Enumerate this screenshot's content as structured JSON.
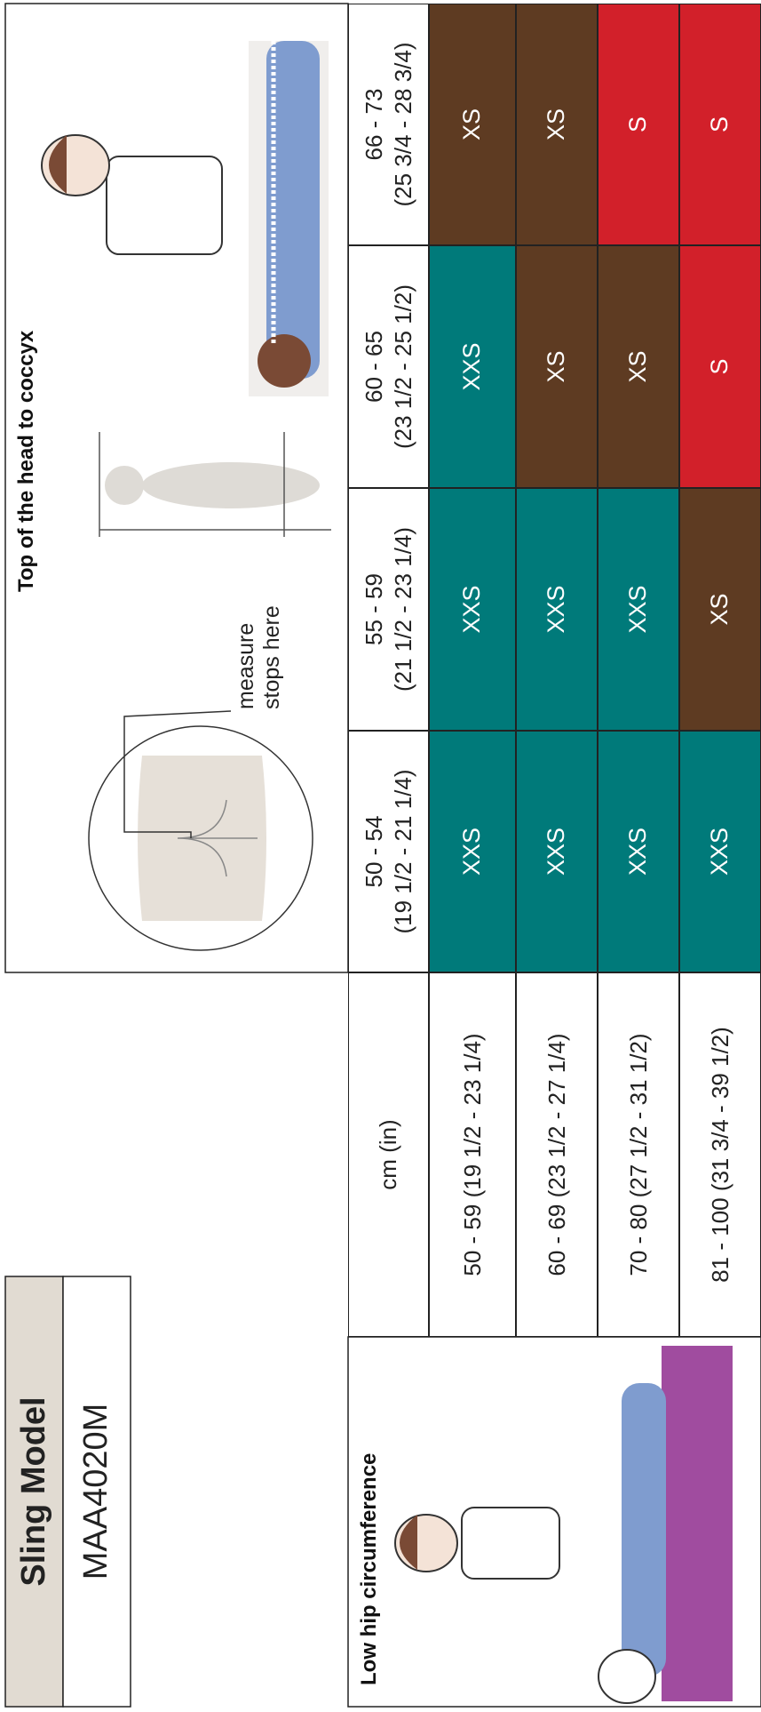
{
  "header": {
    "title": "Sling Model",
    "model": "MAA4020M"
  },
  "hip": {
    "title": "Low hip circumference",
    "unit": "cm (in)",
    "rows": [
      "50 - 59 (19 1/2 - 23 1/4)",
      "60 - 69 (23 1/2 - 27 1/4)",
      "70 - 80 (27 1/2 - 31 1/2)",
      "81 - 100 (31 3/4 - 39 1/2)"
    ]
  },
  "length": {
    "title": "Top of the head to coccyx",
    "note": [
      "measure",
      "stops here"
    ],
    "columns": [
      {
        "cm": "50 - 54",
        "in": "(19 1/2 - 21 1/4)"
      },
      {
        "cm": "55 - 59",
        "in": "(21 1/2 - 23 1/4)"
      },
      {
        "cm": "60 - 65",
        "in": "(23 1/2 - 25 1/2)"
      },
      {
        "cm": "66 - 73",
        "in": "(25 3/4 - 28 3/4)"
      }
    ]
  },
  "table": {
    "rows": [
      [
        "XXS",
        "XXS",
        "XXS",
        "XS"
      ],
      [
        "XXS",
        "XXS",
        "XS",
        "XS"
      ],
      [
        "XXS",
        "XXS",
        "XS",
        "S"
      ],
      [
        "XXS",
        "XS",
        "S",
        "S"
      ]
    ]
  },
  "size_colors": {
    "XXS": "#007a7a",
    "XS": "#5e3b22",
    "S": "#d2202a"
  }
}
